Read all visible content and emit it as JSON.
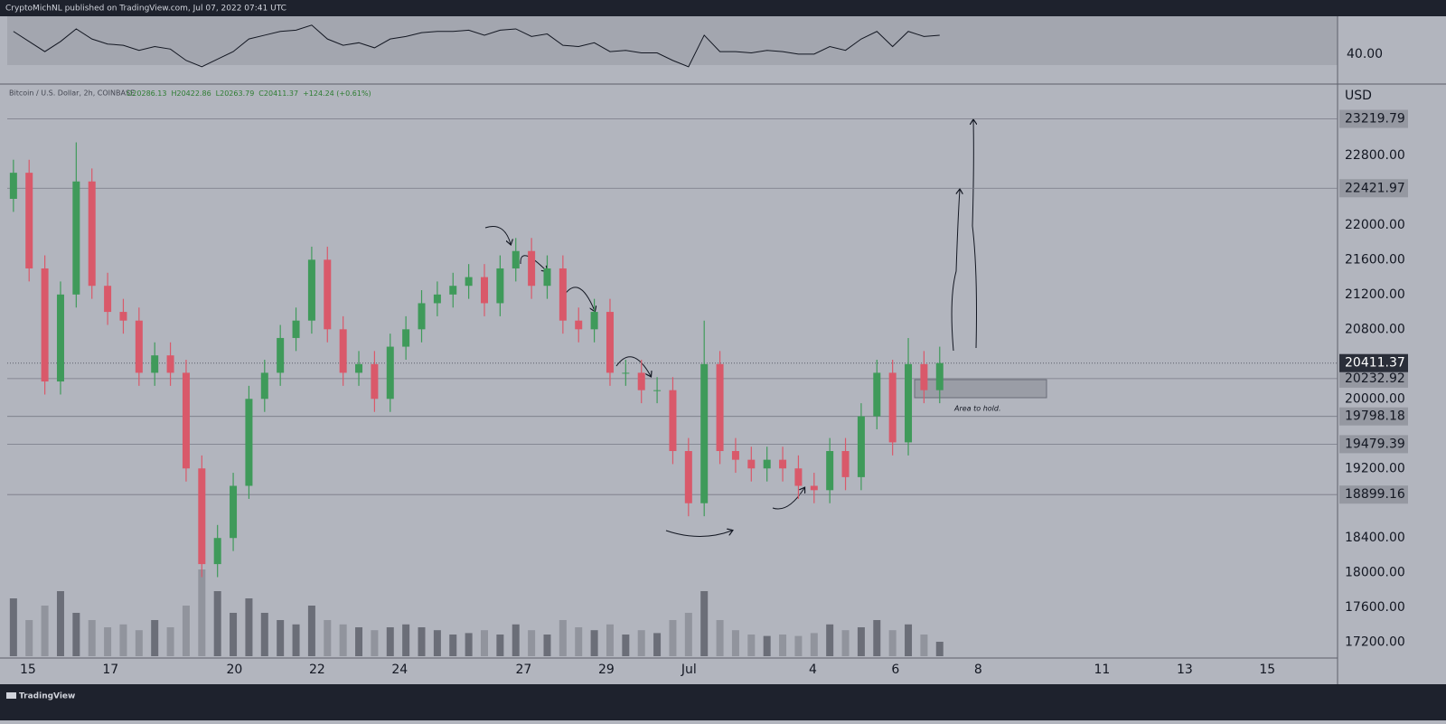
{
  "header": {
    "publisher": "CryptoMichNL published on TradingView.com, Jul 07, 2022 07:41 UTC"
  },
  "footer": {
    "brand": "TradingView"
  },
  "chart_data": {
    "type": "candlestick",
    "symbol": "Bitcoin / U.S. Dollar, 2h, COINBASE",
    "ohlc_readout": [
      "O20286.13",
      "H20422.86",
      "L20263.79",
      "C20411.37",
      "+124.24 (+0.61%)"
    ],
    "currency": "USD",
    "annotation": "Area to hold.",
    "up_color": "#3f9a5a",
    "down_color": "#d9596a",
    "x": [
      14.65,
      15.03,
      15.41,
      15.79,
      16.17,
      16.55,
      16.93,
      17.31,
      17.69,
      18.07,
      18.45,
      18.83,
      19.21,
      19.59,
      19.97,
      20.35,
      20.73,
      21.11,
      21.49,
      21.87,
      22.25,
      22.63,
      23.01,
      23.39,
      23.77,
      24.15,
      24.53,
      24.91,
      25.29,
      25.67,
      26.05,
      26.43,
      26.81,
      27.19,
      27.57,
      27.95,
      28.33,
      28.71,
      29.09,
      29.47,
      29.85,
      30.23,
      30.61,
      30.99,
      31.37,
      31.75,
      32.13,
      32.51,
      32.89,
      33.27,
      33.65,
      34.03,
      34.41,
      34.79,
      35.17,
      35.55,
      35.93,
      36.31,
      36.69,
      37.07
    ],
    "open": [
      22300,
      22600,
      21500,
      20200,
      21200,
      22500,
      21300,
      21000,
      20900,
      20300,
      20500,
      20300,
      19200,
      18100,
      18400,
      19000,
      20000,
      20300,
      20700,
      20900,
      21600,
      20800,
      20300,
      20400,
      20000,
      20600,
      20800,
      21100,
      21200,
      21300,
      21400,
      21100,
      21500,
      21700,
      21300,
      21500,
      20900,
      20800,
      21000,
      20300,
      20300,
      20100,
      20100,
      19400,
      18800,
      20400,
      19400,
      19300,
      19200,
      19300,
      19200,
      19000,
      18950,
      19400,
      19100,
      19800,
      20300,
      19500,
      20400,
      20100
    ],
    "high": [
      22750,
      22750,
      21650,
      21350,
      22950,
      22650,
      21450,
      21150,
      21050,
      20650,
      20650,
      20450,
      19350,
      18550,
      19150,
      20150,
      20450,
      20850,
      21050,
      21750,
      21750,
      20950,
      20550,
      20550,
      20750,
      20950,
      21250,
      21350,
      21450,
      21550,
      21550,
      21650,
      21850,
      21850,
      21650,
      21650,
      21050,
      21150,
      21150,
      20450,
      20450,
      20250,
      20250,
      19550,
      20900,
      20550,
      19550,
      19450,
      19450,
      19450,
      19350,
      19150,
      19550,
      19550,
      19950,
      20450,
      20450,
      20700,
      20550,
      20600
    ],
    "low": [
      22150,
      21350,
      20050,
      20050,
      21050,
      21150,
      20850,
      20750,
      20150,
      20150,
      20150,
      19050,
      17950,
      17950,
      18250,
      18850,
      19850,
      20150,
      20550,
      20750,
      20650,
      20150,
      20150,
      19850,
      19850,
      20450,
      20650,
      20950,
      21050,
      21150,
      20950,
      20950,
      21350,
      21150,
      21150,
      20750,
      20650,
      20650,
      20150,
      20150,
      19950,
      19950,
      19250,
      18650,
      18650,
      19250,
      19150,
      19050,
      19050,
      19050,
      18850,
      18800,
      18800,
      18950,
      18950,
      19650,
      19350,
      19350,
      19950,
      19950
    ],
    "close": [
      22600,
      21500,
      20200,
      21200,
      22500,
      21300,
      21000,
      20900,
      20300,
      20500,
      20300,
      19200,
      18100,
      18400,
      19000,
      20000,
      20300,
      20700,
      20900,
      21600,
      20800,
      20300,
      20400,
      20000,
      20600,
      20800,
      21100,
      21200,
      21300,
      21400,
      21100,
      21500,
      21700,
      21300,
      21500,
      20900,
      20800,
      21000,
      20300,
      20300,
      20100,
      20100,
      19400,
      18800,
      20400,
      19400,
      19300,
      19200,
      19300,
      19200,
      19000,
      18950,
      19400,
      19100,
      19800,
      20300,
      19500,
      20400,
      20100,
      20411.37
    ],
    "volume": [
      40,
      25,
      35,
      45,
      30,
      25,
      20,
      22,
      18,
      25,
      20,
      35,
      60,
      45,
      30,
      40,
      30,
      25,
      22,
      35,
      25,
      22,
      20,
      18,
      20,
      22,
      20,
      18,
      15,
      16,
      18,
      15,
      22,
      18,
      15,
      25,
      20,
      18,
      22,
      15,
      18,
      16,
      25,
      30,
      45,
      25,
      18,
      15,
      14,
      15,
      14,
      16,
      22,
      18,
      20,
      25,
      18,
      22,
      15,
      10
    ],
    "rsi": [
      58,
      50,
      42,
      50,
      60,
      52,
      48,
      47,
      43,
      46,
      44,
      35,
      30,
      36,
      42,
      52,
      55,
      58,
      59,
      63,
      52,
      47,
      49,
      45,
      52,
      54,
      57,
      58,
      58,
      59,
      55,
      59,
      60,
      54,
      56,
      47,
      46,
      49,
      42,
      43,
      41,
      41,
      35,
      30,
      55,
      42,
      42,
      41,
      43,
      42,
      40,
      40,
      46,
      43,
      52,
      58,
      46,
      58,
      54,
      55
    ],
    "rsi_ylim": [
      17,
      70
    ],
    "rsi_yticks": [
      {
        "value": 40,
        "label": "40.00"
      }
    ],
    "xlim": [
      14.5,
      46.7
    ],
    "xticks": [
      15,
      17,
      20,
      22,
      24,
      27,
      29,
      {
        "value": 31,
        "label": "Jul"
      },
      {
        "value": 34,
        "label": "4"
      },
      {
        "value": 36,
        "label": "6"
      },
      {
        "value": 38,
        "label": "8"
      },
      {
        "value": 41,
        "label": "11"
      },
      {
        "value": 43,
        "label": "13"
      },
      {
        "value": 45,
        "label": "15"
      }
    ],
    "ylim": [
      17020,
      23620
    ],
    "yticks": [
      {
        "value": 17200,
        "label": "17200.00"
      },
      {
        "value": 17600,
        "label": "17600.00"
      },
      {
        "value": 18000,
        "label": "18000.00"
      },
      {
        "value": 18400,
        "label": "18400.00"
      },
      {
        "value": 19200,
        "label": "19200.00"
      },
      {
        "value": 20000,
        "label": "20000.00"
      },
      {
        "value": 20800,
        "label": "20800.00"
      },
      {
        "value": 21200,
        "label": "21200.00"
      },
      {
        "value": 21600,
        "label": "21600.00"
      },
      {
        "value": 22000,
        "label": "22000.00"
      },
      {
        "value": 22800,
        "label": "22800.00"
      }
    ],
    "price_levels": [
      23219.79,
      22421.97,
      20232.92,
      19798.18,
      19479.39,
      18899.16
    ],
    "last_price": 20411.37
  }
}
